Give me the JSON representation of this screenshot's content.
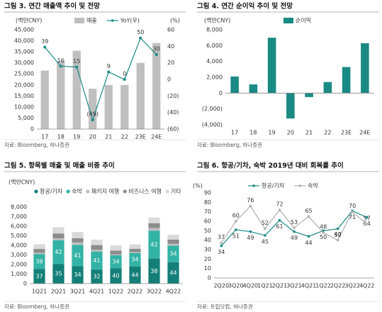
{
  "chart_data": [
    {
      "type": "combo",
      "title": "그림 3. 연간 매출액 추이 및 전망",
      "y_unit": "(백만CNY)",
      "y2_unit": "(%)",
      "categories": [
        "17",
        "18",
        "19",
        "20",
        "21",
        "22",
        "23E",
        "24E"
      ],
      "series": [
        {
          "name": "매출",
          "color": "#bfbfbf",
          "values": [
            26500,
            30800,
            35500,
            18300,
            20000,
            20000,
            30000,
            39000
          ]
        },
        {
          "name": "YoY(우)",
          "color": "#1a8a84",
          "axis": "y2",
          "values": [
            39,
            16,
            15,
            -49,
            9,
            0,
            50,
            30
          ],
          "value_labels": [
            "39",
            "16",
            "15",
            "(49)",
            "9",
            "0",
            "50",
            "30"
          ]
        }
      ],
      "ylim": [
        0,
        45000
      ],
      "yticks": [
        0,
        {
          "value": 5000,
          "label": "5,000"
        },
        {
          "value": 10000,
          "label": "10,000"
        },
        {
          "value": 15000,
          "label": "15,000"
        },
        {
          "value": 20000,
          "label": "20,000"
        },
        {
          "value": 25000,
          "label": "25,000"
        },
        {
          "value": 30000,
          "label": "30,000"
        },
        {
          "value": 35000,
          "label": "35,000"
        },
        {
          "value": 40000,
          "label": "40,000"
        },
        {
          "value": 45000,
          "label": "45,000"
        }
      ],
      "y2lim": [
        -60,
        60
      ],
      "y2ticks": [
        {
          "value": -60,
          "label": "(60)"
        },
        {
          "value": -40,
          "label": "(40)"
        },
        {
          "value": -20,
          "label": "(20)"
        },
        0,
        20,
        40,
        60
      ],
      "source": "자료: Bloomberg, 하나증권"
    },
    {
      "type": "bar",
      "title": "그림 4. 연간 순이익 추이 및 전망",
      "y_unit": "(백만CNY)",
      "categories": [
        "17",
        "18",
        "19",
        "20",
        "21",
        "22",
        "23E",
        "24E"
      ],
      "series": [
        {
          "name": "순이익",
          "color": "#1a8a84",
          "values": [
            2100,
            1100,
            7000,
            -3200,
            -500,
            1400,
            3300,
            6300
          ]
        }
      ],
      "ylim": [
        -4000,
        8000
      ],
      "yticks": [
        {
          "value": -4000,
          "label": "(4,000)"
        },
        {
          "value": -2000,
          "label": "(2,000)"
        },
        0,
        {
          "value": 2000,
          "label": "2,000"
        },
        {
          "value": 4000,
          "label": "4,000"
        },
        {
          "value": 6000,
          "label": "6,000"
        },
        {
          "value": 8000,
          "label": "8,000"
        }
      ],
      "source": "자료: Bloomberg, 하나증권"
    },
    {
      "type": "stacked",
      "title": "그림 5. 항목별 매출 및 매출 비중 추이",
      "y_unit": "(백만CNY)",
      "categories": [
        "1Q21",
        "2Q21",
        "3Q21",
        "4Q21",
        "1Q22",
        "2Q22",
        "3Q22",
        "4Q22"
      ],
      "series": [
        {
          "name": "항공/기차",
          "color": "#137f78",
          "values": [
            1517,
            2065,
            1836,
            1472,
            1600,
            1804,
            2622,
            2244
          ],
          "shares": [
            37,
            35,
            34,
            32,
            40,
            44,
            38,
            44
          ]
        },
        {
          "name": "숙박",
          "color": "#33b3a5",
          "values": [
            1558,
            2478,
            2214,
            1886,
            1360,
            1394,
            2898,
            1734
          ],
          "shares": [
            38,
            42,
            41,
            41,
            34,
            34,
            42,
            34
          ]
        },
        {
          "name": "패키지 여행",
          "color": "#bfbfbf",
          "values": [
            150,
            200,
            250,
            170,
            90,
            90,
            300,
            180
          ]
        },
        {
          "name": "비즈니스 여행",
          "color": "#8c8c8c",
          "values": [
            400,
            500,
            450,
            500,
            400,
            350,
            500,
            450
          ]
        },
        {
          "name": "기타",
          "color": "#dadada",
          "values": [
            490,
            657,
            650,
            572,
            550,
            462,
            580,
            492
          ]
        }
      ],
      "ylim": [
        0,
        8000
      ],
      "yticks": [
        0,
        {
          "value": 1000,
          "label": "1,000"
        },
        {
          "value": 2000,
          "label": "2,000"
        },
        {
          "value": 3000,
          "label": "3,000"
        },
        {
          "value": 4000,
          "label": "4,000"
        },
        {
          "value": 5000,
          "label": "5,000"
        },
        {
          "value": 6000,
          "label": "6,000"
        },
        {
          "value": 7000,
          "label": "7,000"
        },
        {
          "value": 8000,
          "label": "8,000"
        }
      ],
      "source": "자료: Bloomberg, 하나증권"
    },
    {
      "type": "line",
      "title": "그림 6. 항공/기차, 숙박 2019년 대비 회복률 추이",
      "y_unit": "(%)",
      "categories": [
        "2Q20",
        "3Q20",
        "4Q20",
        "1Q21",
        "2Q21",
        "3Q21",
        "4Q21",
        "1Q22",
        "2Q22",
        "3Q22",
        "4Q22"
      ],
      "series": [
        {
          "name": "항공/기차",
          "color": "#1a8a84",
          "values": [
            34,
            51,
            49,
            45,
            61,
            49,
            44,
            50,
            52,
            71,
            64
          ]
        },
        {
          "name": "숙박",
          "color": "#b0b0b0",
          "values": [
            37,
            60,
            76,
            52,
            72,
            53,
            65,
            48,
            40,
            70,
            57
          ]
        }
      ],
      "ylim": [
        0,
        90
      ],
      "yticks": [
        0,
        10,
        20,
        30,
        40,
        50,
        60,
        70,
        80,
        90
      ],
      "source": "자료: 트립닷컴, 하나증권"
    }
  ]
}
